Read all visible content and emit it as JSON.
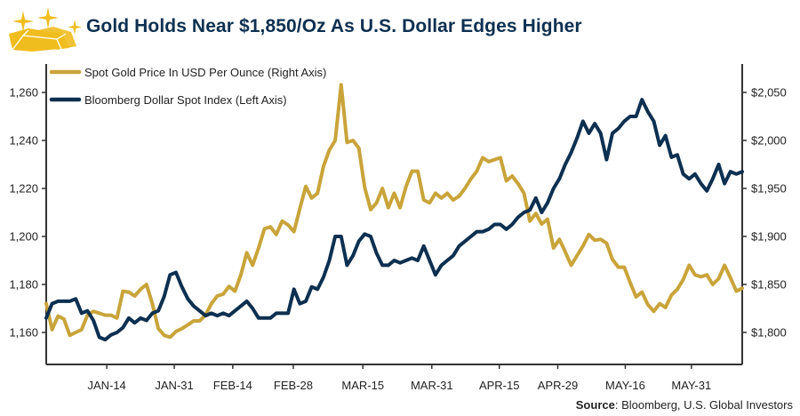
{
  "title": "Gold Holds Near $1,850/Oz As U.S. Dollar Edges Higher",
  "source_label": "Source",
  "source_text": ": Bloomberg, U.S. Global Investors",
  "colors": {
    "gold": "#c9a43a",
    "dollar": "#0d3050",
    "title": "#0d3050",
    "logo": "#f0bd1e"
  },
  "chart_data": {
    "type": "line",
    "title": "Gold Holds Near $1,850/Oz As U.S. Dollar Edges Higher",
    "xlabel": "",
    "x_tick_labels": [
      "JAN-14",
      "JAN-31",
      "FEB-14",
      "FEB-28",
      "MAR-15",
      "MAR-31",
      "APR-15",
      "APR-29",
      "MAY-16",
      "MAY-31"
    ],
    "x_tick_positions": [
      0.087,
      0.184,
      0.268,
      0.355,
      0.455,
      0.554,
      0.651,
      0.735,
      0.832,
      0.927
    ],
    "left_axis": {
      "label": "Bloomberg Dollar Spot Index",
      "ylim": [
        1144,
        1270
      ],
      "ticks": [
        1160,
        1180,
        1200,
        1220,
        1240,
        1260
      ],
      "tick_labels": [
        "1,160",
        "1,180",
        "1,200",
        "1,220",
        "1,240",
        "1,260"
      ]
    },
    "right_axis": {
      "label": "Spot Gold Price In USD Per Ounce",
      "ylim": [
        1760,
        2075
      ],
      "ticks": [
        1800,
        1850,
        1900,
        1950,
        2000,
        2050
      ],
      "tick_labels": [
        "$1,800",
        "$1,850",
        "$1,900",
        "$1,950",
        "$2,000",
        "$2,050"
      ]
    },
    "legend_position": "top-left",
    "series": [
      {
        "name": "Spot Gold Price In USD Per Ounce (Right Axis)",
        "axis": "right",
        "values": [
          1830,
          1803,
          1817,
          1814,
          1797,
          1800,
          1803,
          1818,
          1822,
          1820,
          1818,
          1818,
          1815,
          1843,
          1842,
          1838,
          1845,
          1850,
          1830,
          1804,
          1797,
          1795,
          1801,
          1804,
          1808,
          1812,
          1812,
          1818,
          1830,
          1838,
          1840,
          1848,
          1843,
          1860,
          1883,
          1870,
          1888,
          1908,
          1910,
          1902,
          1916,
          1912,
          1905,
          1929,
          1952,
          1940,
          1945,
          1973,
          1990,
          2000,
          2058,
          1998,
          2000,
          1992,
          1951,
          1928,
          1935,
          1950,
          1930,
          1945,
          1930,
          1952,
          1968,
          1968,
          1938,
          1935,
          1945,
          1940,
          1945,
          1938,
          1942,
          1950,
          1960,
          1968,
          1982,
          1978,
          1980,
          1982,
          1958,
          1963,
          1955,
          1945,
          1916,
          1924,
          1913,
          1918,
          1888,
          1897,
          1884,
          1870,
          1880,
          1890,
          1902,
          1896,
          1897,
          1893,
          1876,
          1868,
          1868,
          1852,
          1837,
          1842,
          1829,
          1822,
          1830,
          1826,
          1839,
          1845,
          1855,
          1870,
          1860,
          1858,
          1860,
          1850,
          1856,
          1870,
          1857,
          1843,
          1846
        ]
      },
      {
        "name": "Bloomberg Dollar Spot Index (Left Axis)",
        "axis": "left",
        "values": [
          1166,
          1172,
          1173,
          1173,
          1173,
          1174,
          1168,
          1169,
          1165,
          1158,
          1157,
          1159,
          1160,
          1162,
          1166,
          1164,
          1166,
          1165,
          1168,
          1169,
          1175,
          1184,
          1185,
          1179,
          1174,
          1171,
          1169,
          1167,
          1168,
          1167,
          1168,
          1167,
          1169,
          1171,
          1173,
          1170,
          1166,
          1166,
          1166,
          1168,
          1168,
          1168,
          1178,
          1172,
          1173,
          1179,
          1178,
          1183,
          1190,
          1200,
          1200,
          1188,
          1192,
          1198,
          1201,
          1200,
          1193,
          1188,
          1188,
          1190,
          1189,
          1190,
          1191,
          1190,
          1196,
          1190,
          1184,
          1188,
          1190,
          1192,
          1196,
          1198,
          1200,
          1202,
          1202,
          1203,
          1205,
          1205,
          1203,
          1205,
          1208,
          1210,
          1211,
          1216,
          1210,
          1214,
          1220,
          1224,
          1230,
          1235,
          1241,
          1248,
          1243,
          1247,
          1243,
          1232,
          1243,
          1245,
          1248,
          1250,
          1250,
          1257,
          1252,
          1248,
          1238,
          1242,
          1233,
          1234,
          1226,
          1224,
          1226,
          1222,
          1219,
          1224,
          1230,
          1222,
          1227,
          1226,
          1227
        ]
      }
    ]
  }
}
